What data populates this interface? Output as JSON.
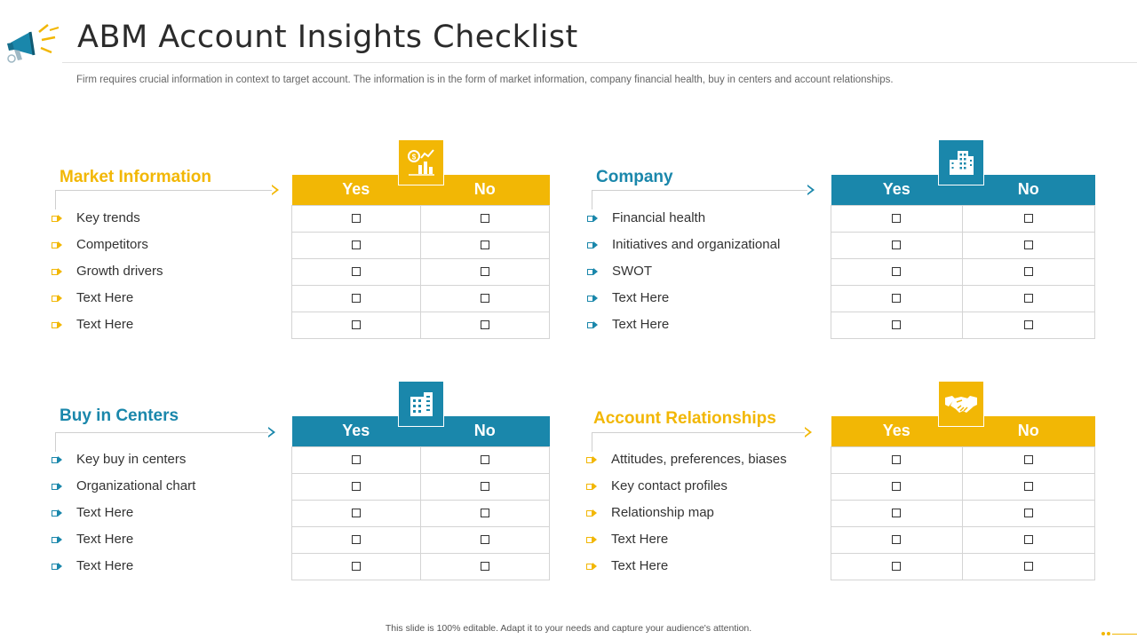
{
  "header": {
    "title": "ABM Account Insights Checklist",
    "subtitle": "Firm requires crucial information in context to target account. The information is in the form of market information, company financial health, buy in centers and account relationships."
  },
  "footer": {
    "note": "This slide is 100% editable. Adapt it to your needs and capture your audience's attention."
  },
  "colors": {
    "yellow": "#f2b705",
    "blue": "#1a87ab"
  },
  "sections": [
    {
      "title": "Market Information",
      "icon": "finance-chart-icon",
      "yes_label": "Yes",
      "no_label": "No",
      "items": [
        "Key trends",
        "Competitors",
        "Growth drivers",
        "Text Here",
        "Text Here"
      ]
    },
    {
      "title": "Company",
      "icon": "office-building-icon",
      "yes_label": "Yes",
      "no_label": "No",
      "items": [
        "Financial health",
        "Initiatives and organizational",
        "SWOT",
        "Text Here",
        "Text Here"
      ]
    },
    {
      "title": "Buy in Centers",
      "icon": "buildings-icon",
      "yes_label": "Yes",
      "no_label": "No",
      "items": [
        "Key buy in centers",
        "Organizational chart",
        "Text Here",
        "Text Here",
        "Text Here"
      ]
    },
    {
      "title": "Account Relationships",
      "icon": "handshake-icon",
      "yes_label": "Yes",
      "no_label": "No",
      "items": [
        "Attitudes, preferences, biases",
        "Key contact profiles",
        "Relationship map",
        "Text Here",
        "Text Here"
      ]
    }
  ]
}
